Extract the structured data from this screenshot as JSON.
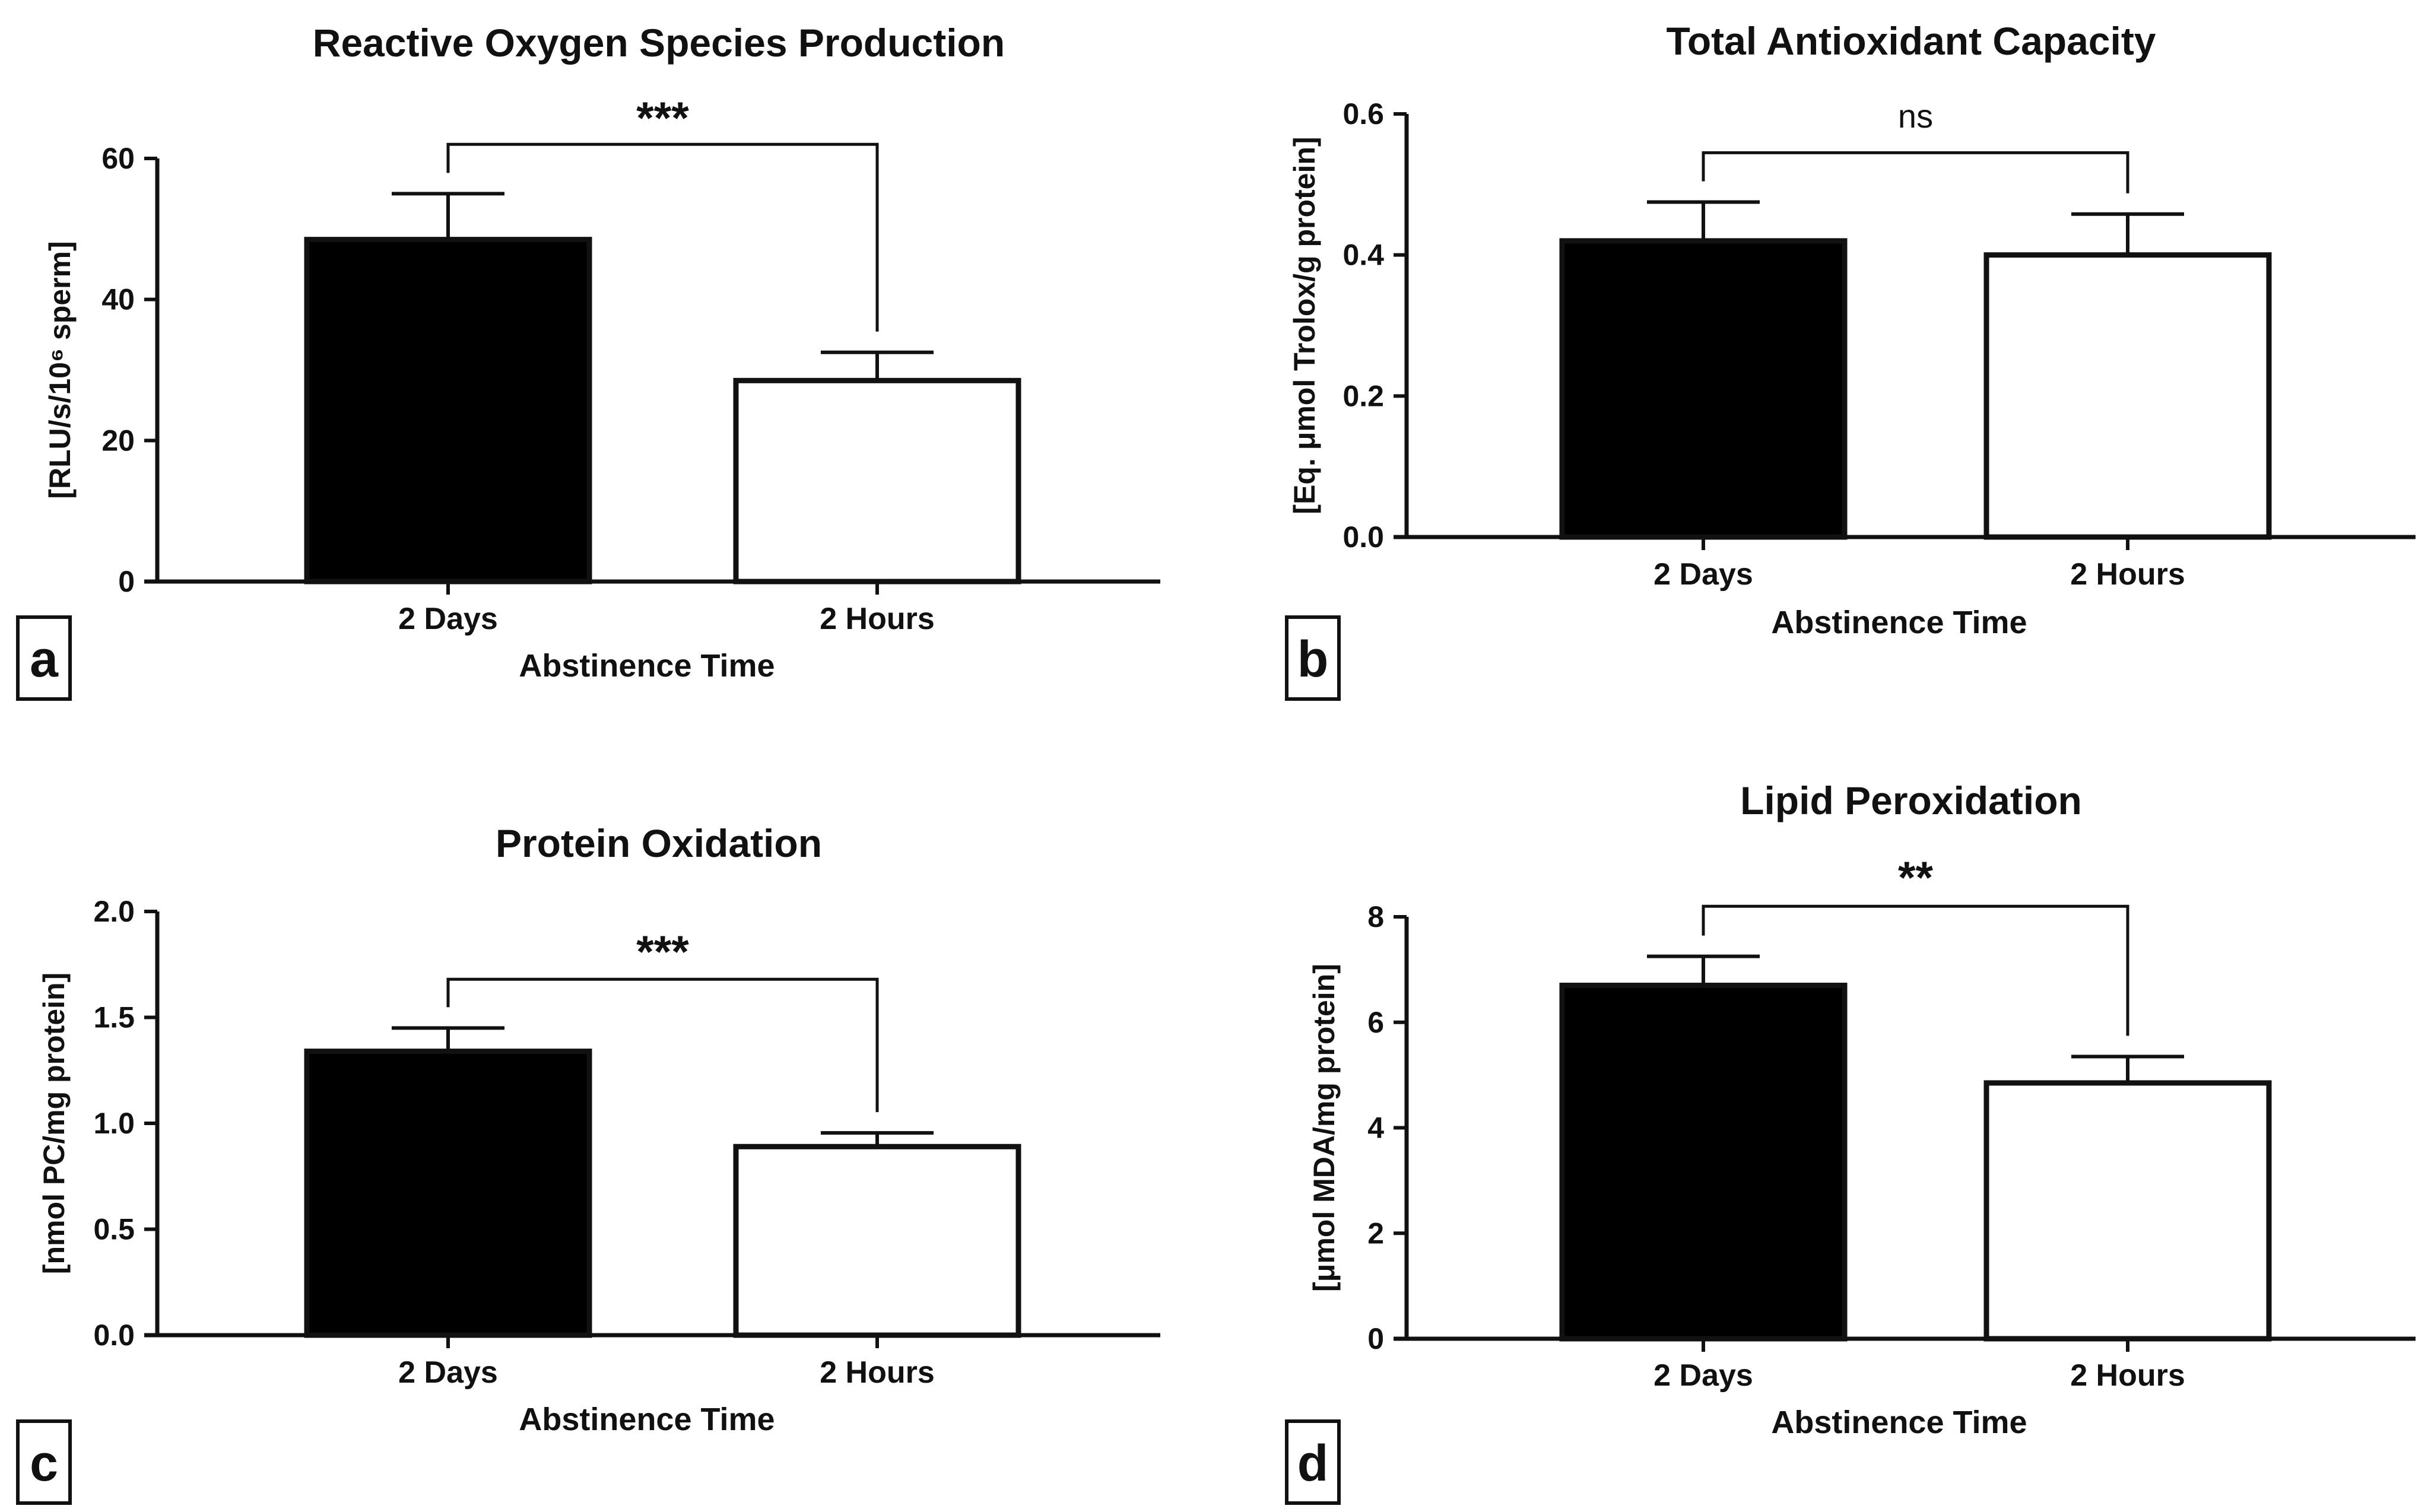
{
  "colors": {
    "ink": "#111111",
    "bar_2_days": "#000000",
    "bar_2_hours": "#ffffff"
  },
  "chart_data": [
    {
      "type": "bar",
      "panel_label": "a",
      "title": "Reactive Oxygen Species Production",
      "categories": [
        "2 Days",
        "2 Hours"
      ],
      "values": [
        48.5,
        28.5
      ],
      "error_upper": [
        55.0,
        32.5
      ],
      "xlabel": "Abstinence Time",
      "ylabel": "[RLU/s/10⁶ sperm]",
      "ylim": [
        0,
        60
      ],
      "yticks": [
        0,
        20,
        40,
        60
      ],
      "ytick_labels": [
        "0",
        "20",
        "40",
        "60"
      ],
      "significance": "***",
      "bracket_level": 62
    },
    {
      "type": "bar",
      "panel_label": "b",
      "title": "Total Antioxidant Capacity",
      "categories": [
        "2 Days",
        "2 Hours"
      ],
      "values": [
        0.42,
        0.4
      ],
      "error_upper": [
        0.475,
        0.458
      ],
      "xlabel": "Abstinence Time",
      "ylabel": "[Eq. μmol Trolox/g protein]",
      "ylim": [
        0,
        0.6
      ],
      "yticks": [
        0,
        0.2,
        0.4,
        0.6
      ],
      "ytick_labels": [
        "0.0",
        "0.2",
        "0.4",
        "0.6"
      ],
      "significance": "ns",
      "bracket_level": 0.545
    },
    {
      "type": "bar",
      "panel_label": "c",
      "title": "Protein Oxidation",
      "categories": [
        "2 Days",
        "2 Hours"
      ],
      "values": [
        1.34,
        0.89
      ],
      "error_upper": [
        1.45,
        0.955
      ],
      "xlabel": "Abstinence Time",
      "ylabel": "[nmol PC/mg protein]",
      "ylim": [
        0,
        2.0
      ],
      "yticks": [
        0,
        0.5,
        1.0,
        1.5,
        2.0
      ],
      "ytick_labels": [
        "0.0",
        "0.5",
        "1.0",
        "1.5",
        "2.0"
      ],
      "significance": "***",
      "bracket_level": 1.68
    },
    {
      "type": "bar",
      "panel_label": "d",
      "title": "Lipid Peroxidation",
      "categories": [
        "2 Days",
        "2 Hours"
      ],
      "values": [
        6.7,
        4.85
      ],
      "error_upper": [
        7.25,
        5.35
      ],
      "xlabel": "Abstinence Time",
      "ylabel": "[μmol MDA/mg protein]",
      "ylim": [
        0,
        8
      ],
      "yticks": [
        0,
        2,
        4,
        6,
        8
      ],
      "ytick_labels": [
        "0",
        "2",
        "4",
        "6",
        "8"
      ],
      "significance": "**",
      "bracket_level": 8.2
    }
  ]
}
